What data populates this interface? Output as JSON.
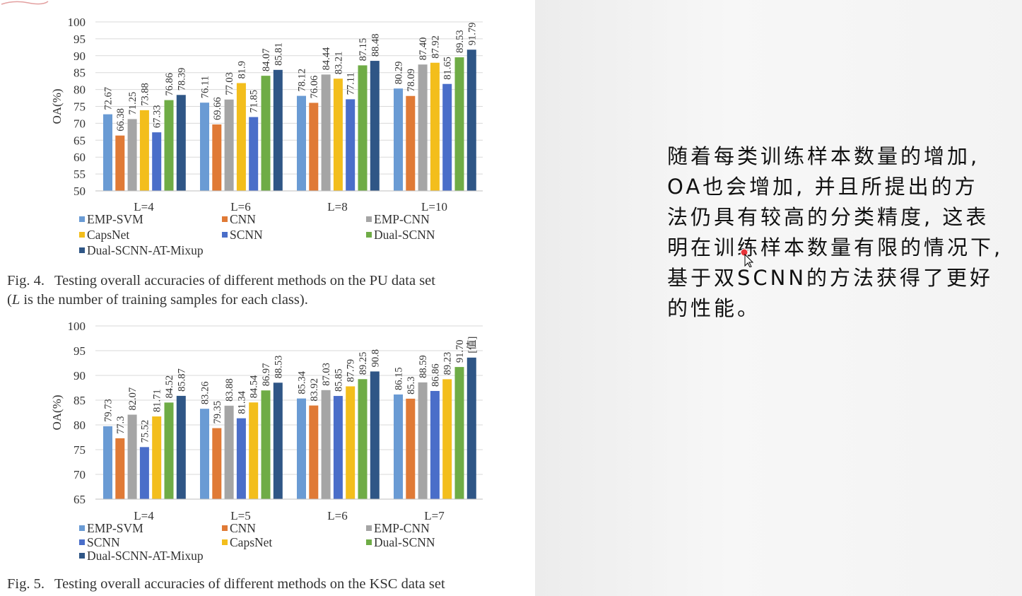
{
  "colors": {
    "EMP-SVM": "#6a9bd4",
    "CNN": "#e07a36",
    "EMP-CNN": "#a5a5a5",
    "CapsNet": "#f3be1c",
    "SCNN": "#4a6ec9",
    "Dual-SCNN": "#6fac46",
    "Dual-SCNN-AT-Mixup": "#2f5686"
  },
  "chart_data": [
    {
      "type": "bar",
      "title": "",
      "xlabel": "",
      "ylabel": "OA(%)",
      "ylim": [
        50,
        100
      ],
      "yticks": [
        50,
        55,
        60,
        65,
        70,
        75,
        80,
        85,
        90,
        95,
        100
      ],
      "grid": true,
      "legend_position": "bottom",
      "categories": [
        "L=4",
        "L=6",
        "L=8",
        "L=10"
      ],
      "series": [
        {
          "name": "EMP-SVM",
          "values": [
            72.67,
            76.11,
            78.12,
            80.29
          ],
          "labels": [
            "72.67",
            "76.11",
            "78.12",
            "80.29"
          ]
        },
        {
          "name": "CNN",
          "values": [
            66.38,
            69.66,
            76.06,
            78.09
          ],
          "labels": [
            "66.38",
            "69.66",
            "76.06",
            "78.09"
          ]
        },
        {
          "name": "EMP-CNN",
          "values": [
            71.25,
            77.03,
            84.44,
            87.4
          ],
          "labels": [
            "71.25",
            "77.03",
            "84.44",
            "87.40"
          ]
        },
        {
          "name": "CapsNet",
          "values": [
            73.88,
            81.9,
            83.21,
            87.92
          ],
          "labels": [
            "73.88",
            "81.9",
            "83.21",
            "87.92"
          ]
        },
        {
          "name": "SCNN",
          "values": [
            67.33,
            71.85,
            77.11,
            81.65
          ],
          "labels": [
            "67.33",
            "71.85",
            "77.11",
            "81.65"
          ]
        },
        {
          "name": "Dual-SCNN",
          "values": [
            76.86,
            84.07,
            87.15,
            89.53
          ],
          "labels": [
            "76.86",
            "84.07",
            "87.15",
            "89.53"
          ]
        },
        {
          "name": "Dual-SCNN-AT-Mixup",
          "values": [
            78.39,
            85.81,
            88.48,
            91.79
          ],
          "labels": [
            "78.39",
            "85.81",
            "88.48",
            "91.79"
          ]
        }
      ]
    },
    {
      "type": "bar",
      "title": "",
      "xlabel": "",
      "ylabel": "OA(%)",
      "ylim": [
        65,
        100
      ],
      "yticks": [
        65,
        70,
        75,
        80,
        85,
        90,
        95,
        100
      ],
      "grid": true,
      "legend_position": "bottom",
      "categories": [
        "L=4",
        "L=5",
        "L=6",
        "L=7"
      ],
      "series": [
        {
          "name": "EMP-SVM",
          "values": [
            79.73,
            83.26,
            85.34,
            86.15
          ],
          "labels": [
            "79.73",
            "83.26",
            "85.34",
            "86.15"
          ]
        },
        {
          "name": "CNN",
          "values": [
            77.3,
            79.35,
            83.92,
            85.3
          ],
          "labels": [
            "77.3",
            "79.35",
            "83.92",
            "85.3"
          ]
        },
        {
          "name": "EMP-CNN",
          "values": [
            82.07,
            83.88,
            87.03,
            88.59
          ],
          "labels": [
            "82.07",
            "83.88",
            "87.03",
            "88.59"
          ]
        },
        {
          "name": "SCNN",
          "values": [
            75.52,
            81.34,
            85.85,
            86.86
          ],
          "labels": [
            "75.52",
            "81.34",
            "85.85",
            "86.86"
          ]
        },
        {
          "name": "CapsNet",
          "values": [
            81.71,
            84.54,
            87.79,
            89.23
          ],
          "labels": [
            "81.71",
            "84.54",
            "87.79",
            "89.23"
          ]
        },
        {
          "name": "Dual-SCNN",
          "values": [
            84.52,
            86.97,
            89.25,
            91.7
          ],
          "labels": [
            "84.52",
            "86.97",
            "89.25",
            "91.70"
          ]
        },
        {
          "name": "Dual-SCNN-AT-Mixup",
          "values": [
            85.87,
            88.53,
            90.8,
            93.6
          ],
          "labels": [
            "85.87",
            "88.53",
            "90.8",
            "[值]"
          ]
        }
      ]
    }
  ],
  "captions": {
    "fig4_label": "Fig. 4.",
    "fig4_line1": "Testing overall accuracies of different methods on the PU data set",
    "fig4_line2_italic": "L",
    "fig4_line2_rest": " is the number of training samples for each class).",
    "fig4_line2_open": "(",
    "fig5_label": "Fig. 5.",
    "fig5_line1": "Testing overall accuracies of different methods on the KSC data set"
  },
  "notes": {
    "lines": [
      "随着每类训练样本数量的增加,",
      "OA也会增加, 并且所提出的方",
      "法仍具有较高的分类精度, 这表",
      "明在训练样本数量有限的情况下,",
      "基于双SCNN的方法获得了更好",
      "的性能。"
    ]
  }
}
